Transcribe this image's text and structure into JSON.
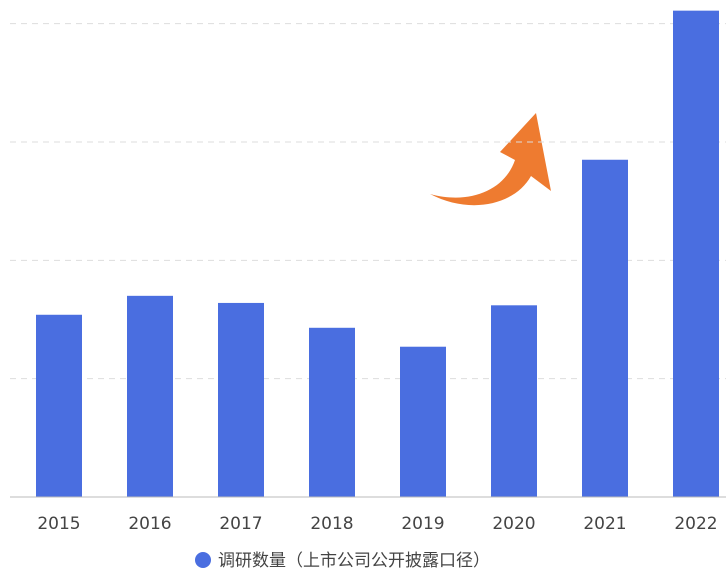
{
  "chart_data": {
    "type": "bar",
    "categories": [
      "2015",
      "2016",
      "2017",
      "2018",
      "2019",
      "2020",
      "2021",
      "2022"
    ],
    "series": [
      {
        "name": "调研数量（上市公司公开披露口径）",
        "color": "#4a6ee0",
        "values": [
          1.54,
          1.7,
          1.64,
          1.43,
          1.27,
          1.62,
          2.85,
          4.11
        ]
      }
    ],
    "ylim": [
      0,
      4.2
    ],
    "yticks": [
      1,
      2,
      3,
      4
    ],
    "grid": true,
    "legend": "bottom"
  }
}
